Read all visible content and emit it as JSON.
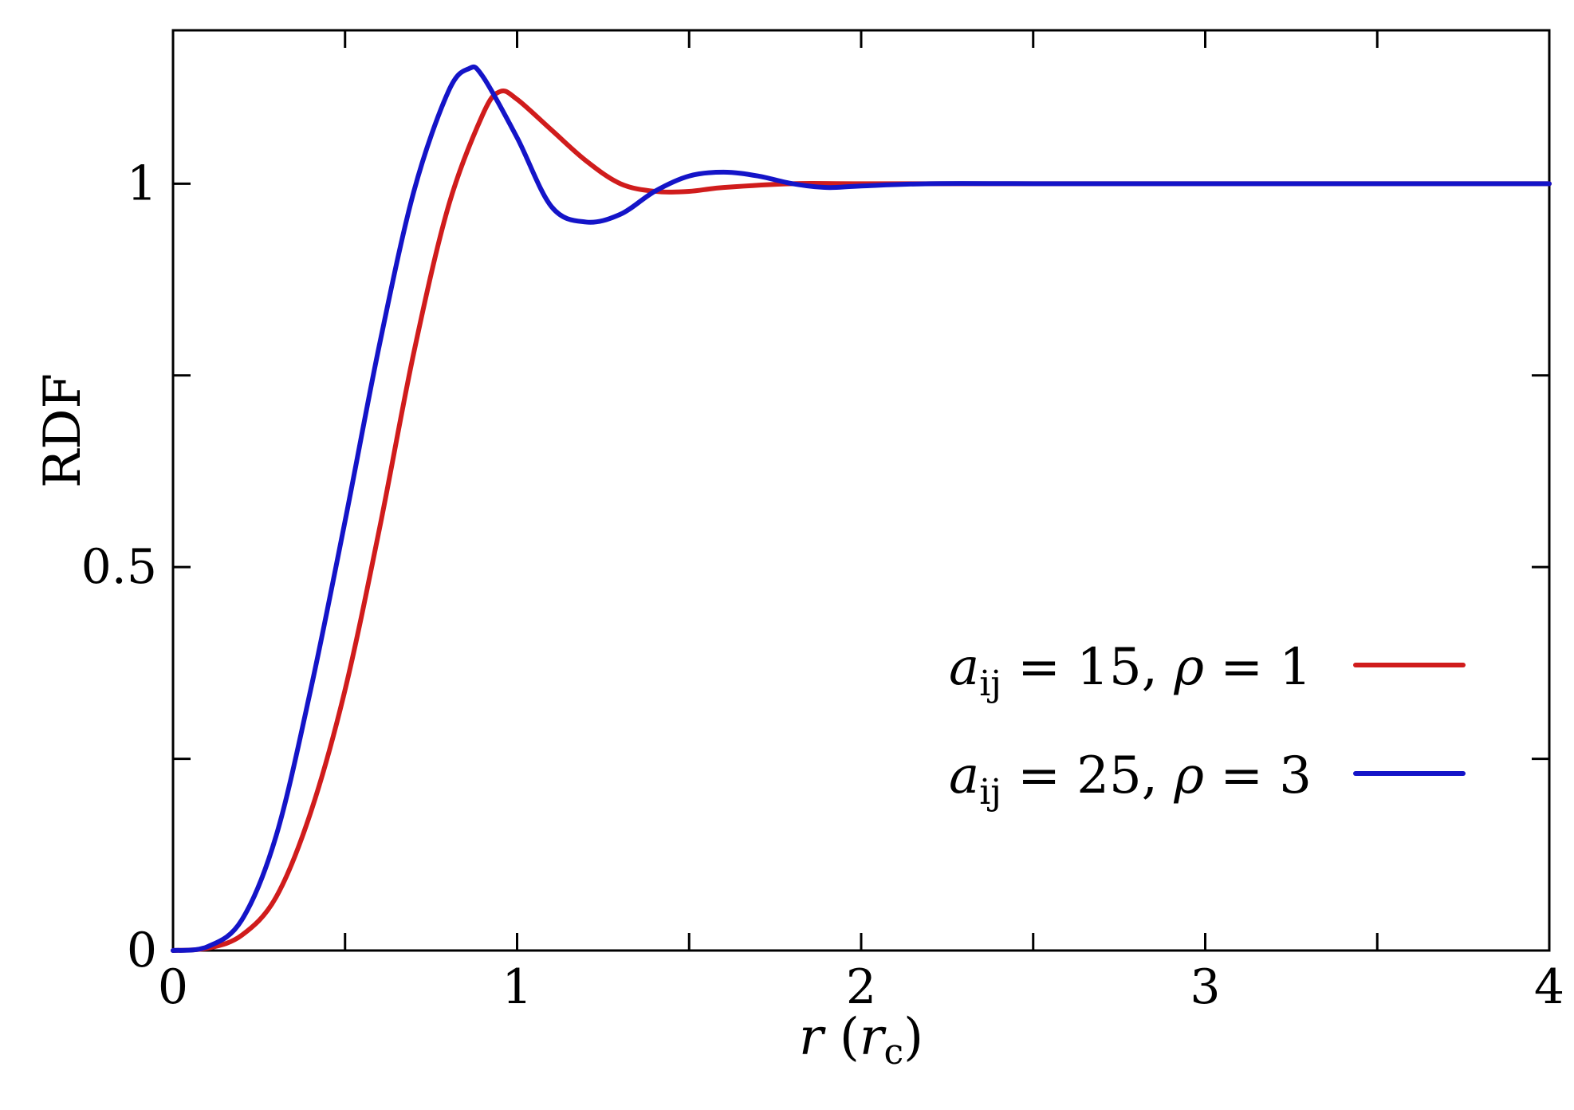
{
  "chart_data": {
    "type": "line",
    "title": "",
    "xlabel": "r (r_c)",
    "ylabel": "RDF",
    "xlim": [
      0,
      4
    ],
    "ylim": [
      0,
      1.2
    ],
    "xticks": [
      0,
      0.5,
      1,
      1.5,
      2,
      2.5,
      3,
      3.5,
      4
    ],
    "xtick_labels": [
      "0",
      "1",
      "2",
      "3",
      "4"
    ],
    "yticks": [
      0,
      0.25,
      0.5,
      0.75,
      1
    ],
    "ytick_labels": [
      "0",
      "0.5",
      "1"
    ],
    "grid": false,
    "legend_position": "center-right",
    "series": [
      {
        "name": "a_ij = 15, ρ = 1",
        "color": "#d01c1c",
        "points": [
          [
            0,
            0
          ],
          [
            0.1,
            0.003
          ],
          [
            0.2,
            0.02
          ],
          [
            0.3,
            0.07
          ],
          [
            0.4,
            0.18
          ],
          [
            0.5,
            0.34
          ],
          [
            0.6,
            0.55
          ],
          [
            0.7,
            0.78
          ],
          [
            0.8,
            0.97
          ],
          [
            0.9,
            1.09
          ],
          [
            0.95,
            1.12
          ],
          [
            1.0,
            1.11
          ],
          [
            1.1,
            1.07
          ],
          [
            1.2,
            1.03
          ],
          [
            1.3,
            1.0
          ],
          [
            1.4,
            0.99
          ],
          [
            1.5,
            0.99
          ],
          [
            1.6,
            0.995
          ],
          [
            1.8,
            1.0
          ],
          [
            2.0,
            1.0
          ],
          [
            2.5,
            1.0
          ],
          [
            3.0,
            1.0
          ],
          [
            3.5,
            1.0
          ],
          [
            4.0,
            1.0
          ]
        ]
      },
      {
        "name": "a_ij = 25, ρ = 3",
        "color": "#1414c8",
        "points": [
          [
            0,
            0
          ],
          [
            0.1,
            0.005
          ],
          [
            0.2,
            0.04
          ],
          [
            0.3,
            0.15
          ],
          [
            0.4,
            0.34
          ],
          [
            0.5,
            0.56
          ],
          [
            0.6,
            0.79
          ],
          [
            0.7,
            0.99
          ],
          [
            0.8,
            1.12
          ],
          [
            0.86,
            1.15
          ],
          [
            0.9,
            1.14
          ],
          [
            1.0,
            1.06
          ],
          [
            1.1,
            0.97
          ],
          [
            1.2,
            0.95
          ],
          [
            1.3,
            0.96
          ],
          [
            1.4,
            0.99
          ],
          [
            1.5,
            1.01
          ],
          [
            1.6,
            1.015
          ],
          [
            1.7,
            1.01
          ],
          [
            1.8,
            1.0
          ],
          [
            1.9,
            0.995
          ],
          [
            2.0,
            0.997
          ],
          [
            2.2,
            1.0
          ],
          [
            2.5,
            1.0
          ],
          [
            3.0,
            1.0
          ],
          [
            3.5,
            1.0
          ],
          [
            4.0,
            1.0
          ]
        ]
      }
    ]
  }
}
